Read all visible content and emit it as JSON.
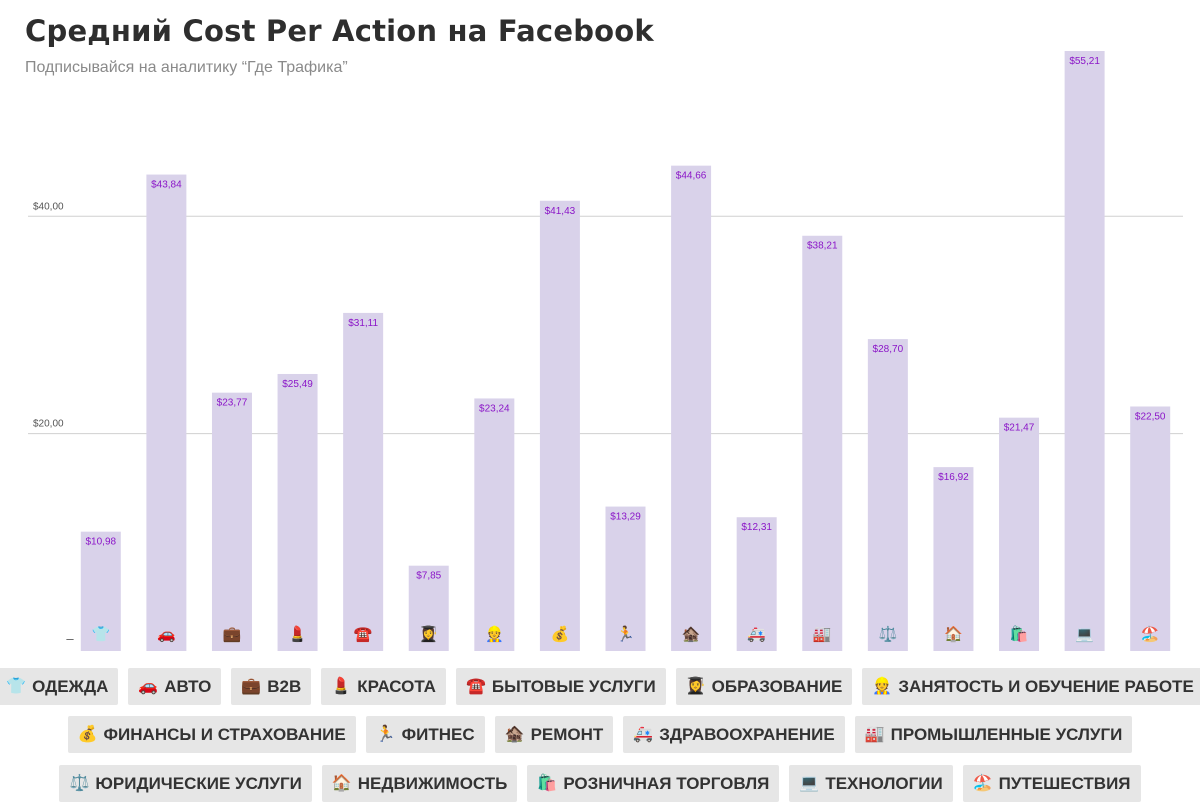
{
  "header": {
    "title": "Средний Cost Per Action на Facebook",
    "subtitle": "Подписывайся на аналитику “Где Трафика”"
  },
  "colors": {
    "bar": "#d9d2ea",
    "label": "#8b16c8",
    "grid": "#d0d0d0",
    "axis_text": "#555555"
  },
  "chart_data": {
    "type": "bar",
    "title": "Средний Cost Per Action на Facebook",
    "subtitle": "Подписывайся на аналитику “Где Трафика”",
    "categories": [
      "ОДЕЖДА",
      "АВТО",
      "B2B",
      "КРАСОТА",
      "БЫТОВЫЕ УСЛУГИ",
      "ОБРАЗОВАНИЕ",
      "ЗАНЯТОСТЬ И ОБУЧЕНИЕ РАБОТЕ",
      "ФИНАНСЫ И СТРАХОВАНИЕ",
      "ФИТНЕС",
      "РЕМОНТ",
      "ЗДРАВООХРАНЕНИЕ",
      "ПРОМЫШЛЕННЫЕ УСЛУГИ",
      "ЮРИДИЧЕСКИЕ УСЛУГИ",
      "НЕДВИЖИМОСТЬ",
      "РОЗНИЧНАЯ ТОРГОВЛЯ",
      "ТЕХНОЛОГИИ",
      "ПУТЕШЕСТВИЯ"
    ],
    "values": [
      10.98,
      43.84,
      23.77,
      25.49,
      31.11,
      7.85,
      23.24,
      41.43,
      13.29,
      44.66,
      12.31,
      38.21,
      28.7,
      16.92,
      21.47,
      55.21,
      22.5
    ],
    "value_labels": [
      "$10,98",
      "$43,84",
      "$23,77",
      "$25,49",
      "$31,11",
      "$7,85",
      "$23,24",
      "$41,43",
      "$13,29",
      "$44,66",
      "$12,31",
      "$38,21",
      "$28,70",
      "$16,92",
      "$21,47",
      "$55,21",
      "$22,50"
    ],
    "icons": [
      "👕",
      "🚗",
      "💼",
      "💄",
      "☎️",
      "👩‍🎓",
      "👷",
      "💰",
      "🏃",
      "🏚️",
      "🚑",
      "🏭",
      "⚖️",
      "🏠",
      "🛍️",
      "💻",
      "🏖️"
    ],
    "y_ticks": [
      {
        "value": 0,
        "label": "–"
      },
      {
        "value": 20,
        "label": "$20,00"
      },
      {
        "value": 40,
        "label": "$40,00"
      }
    ],
    "ylim": [
      0,
      55.21
    ],
    "grid": true,
    "legend_position": "bottom",
    "xlabel": "",
    "ylabel": ""
  },
  "legend": {
    "rows": [
      [
        {
          "icon": "👕",
          "label": "ОДЕЖДА"
        },
        {
          "icon": "🚗",
          "label": "АВТО"
        },
        {
          "icon": "💼",
          "label": "B2B"
        },
        {
          "icon": "💄",
          "label": "КРАСОТА"
        },
        {
          "icon": "☎️",
          "label": "БЫТОВЫЕ УСЛУГИ"
        },
        {
          "icon": "👩‍🎓",
          "label": "ОБРАЗОВАНИЕ"
        },
        {
          "icon": "👷",
          "label": "ЗАНЯТОСТЬ И ОБУЧЕНИЕ РАБОТЕ"
        }
      ],
      [
        {
          "icon": "💰",
          "label": "ФИНАНСЫ И СТРАХОВАНИЕ"
        },
        {
          "icon": "🏃",
          "label": "ФИТНЕС"
        },
        {
          "icon": "🏚️",
          "label": "РЕМОНТ"
        },
        {
          "icon": "🚑",
          "label": "ЗДРАВООХРАНЕНИЕ"
        },
        {
          "icon": "🏭",
          "label": "ПРОМЫШЛЕННЫЕ УСЛУГИ"
        }
      ],
      [
        {
          "icon": "⚖️",
          "label": "ЮРИДИЧЕСКИЕ УСЛУГИ"
        },
        {
          "icon": "🏠",
          "label": "НЕДВИЖИМОСТЬ"
        },
        {
          "icon": "🛍️",
          "label": "РОЗНИЧНАЯ ТОРГОВЛЯ"
        },
        {
          "icon": "💻",
          "label": "ТЕХНОЛОГИИ"
        },
        {
          "icon": "🏖️",
          "label": "ПУТЕШЕСТВИЯ"
        }
      ]
    ]
  }
}
